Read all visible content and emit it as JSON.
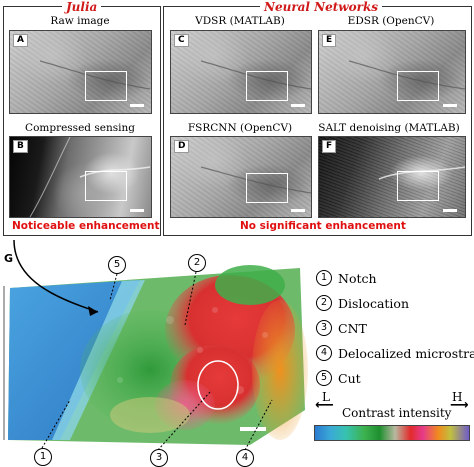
{
  "groups": {
    "julia": "Julia",
    "nn": "Neural Networks"
  },
  "panels": [
    {
      "letter": "A",
      "caption": "Raw image"
    },
    {
      "letter": "B",
      "caption": "Compressed sensing"
    },
    {
      "letter": "C",
      "caption": "VDSR (MATLAB)"
    },
    {
      "letter": "E",
      "caption": "EDSR (OpenCV)"
    },
    {
      "letter": "D",
      "caption": "FSRCNN (OpenCV)"
    },
    {
      "letter": "F",
      "caption": "SALT denoising (MATLAB)"
    }
  ],
  "verdicts": {
    "julia": "Noticeable enhancement",
    "nn": "No significant enhancement"
  },
  "panel_g": "G",
  "callouts": [
    "1",
    "2",
    "3",
    "4",
    "5"
  ],
  "legend": [
    {
      "num": "1",
      "label": "Notch"
    },
    {
      "num": "2",
      "label": "Dislocation"
    },
    {
      "num": "3",
      "label": "CNT"
    },
    {
      "num": "4",
      "label": "Delocalized microstrain"
    },
    {
      "num": "5",
      "label": "Cut"
    }
  ],
  "colorbar": {
    "low": "L",
    "high": "H",
    "title": "Contrast intensity",
    "left_arrow": "⟵",
    "right_arrow": "⟶"
  }
}
